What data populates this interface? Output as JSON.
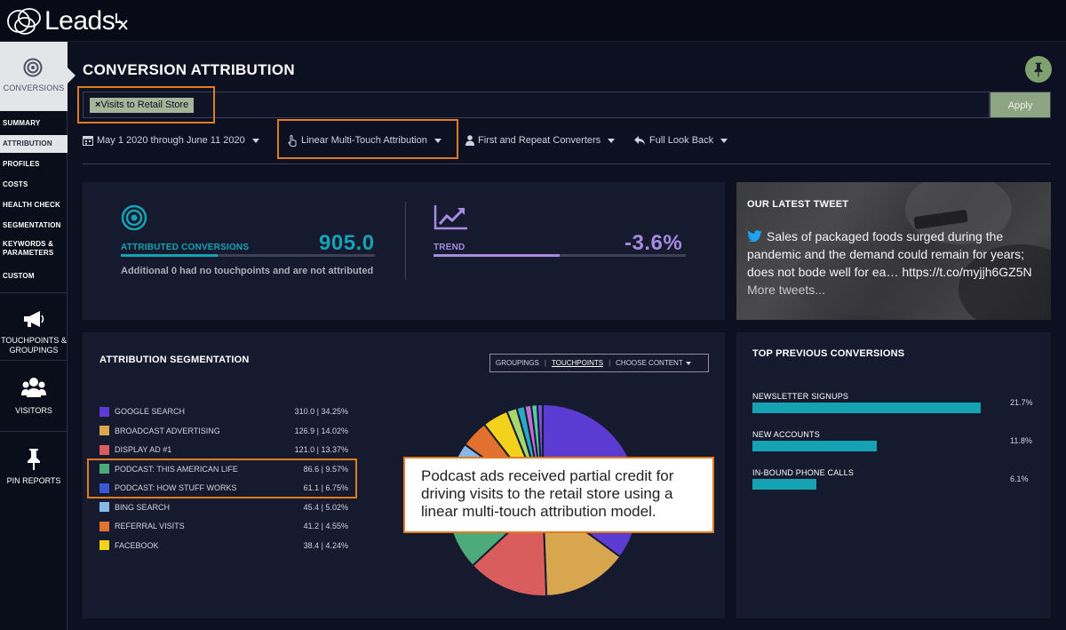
{
  "app": {
    "name": "Leads"
  },
  "sidebar": {
    "conversions_label": "CONVERSIONS",
    "subnav": [
      "SUMMARY",
      "ATTRIBUTION",
      "PROFILES",
      "COSTS",
      "HEALTH CHECK",
      "SEGMENTATION",
      "KEYWORDS & PARAMETERS",
      "CUSTOM"
    ],
    "active_index": 1,
    "touchpoints_label": "TOUCHPOINTS & GROUPINGS",
    "visitors_label": "VISITORS",
    "pin_reports_label": "PIN REPORTS"
  },
  "header": {
    "title": "CONVERSION ATTRIBUTION"
  },
  "filter": {
    "chip_text": "Visits to Retail Store",
    "apply_label": "Apply"
  },
  "controls": {
    "date_range": "May 1 2020 through June 11 2020",
    "model": "Linear Multi-Touch Attribution",
    "converters": "First and Repeat Converters",
    "lookback": "Full Look Back"
  },
  "kpis": {
    "attributed_label": "ATTRIBUTED CONVERSIONS",
    "attributed_value": "905.0",
    "attributed_note": "Additional 0 had no touchpoints and are not attributed",
    "trend_label": "TREND",
    "trend_value": "-3.6%"
  },
  "tweet": {
    "title": "OUR LATEST TWEET",
    "text": "Sales of packaged foods surged during the pandemic and the demand could remain for years; does not bode well for ea… https://t.co/myjjh6GZ5N",
    "more": "More tweets..."
  },
  "segmentation": {
    "title": "ATTRIBUTION SEGMENTATION",
    "toggle": [
      "GROUPINGS",
      "TOUCHPOINTS",
      "CHOOSE CONTENT"
    ]
  },
  "chart_data": {
    "type": "pie",
    "series": [
      {
        "label": "GOOGLE SEARCH",
        "value": 310.0,
        "percent": 34.25,
        "display": "310.0 | 34.25%",
        "color": "#5b3bd1"
      },
      {
        "label": "BROADCAST ADVERTISING",
        "value": 126.9,
        "percent": 14.02,
        "display": "126.9 | 14.02%",
        "color": "#d9a650"
      },
      {
        "label": "DISPLAY AD #1",
        "value": 121.0,
        "percent": 13.37,
        "display": "121.0 | 13.37%",
        "color": "#d95d5d"
      },
      {
        "label": "PODCAST: THIS AMERICAN LIFE",
        "value": 86.6,
        "percent": 9.57,
        "display": "86.6 | 9.57%",
        "color": "#4daa7a"
      },
      {
        "label": "PODCAST: HOW STUFF WORKS",
        "value": 61.1,
        "percent": 6.75,
        "display": "61.1 | 6.75%",
        "color": "#3a57d8"
      },
      {
        "label": "BING SEARCH",
        "value": 45.4,
        "percent": 5.02,
        "display": "45.4 | 5.02%",
        "color": "#86b8e8"
      },
      {
        "label": "REFERRAL VISITS",
        "value": 41.2,
        "percent": 4.55,
        "display": "41.2 | 4.55%",
        "color": "#e2702f"
      },
      {
        "label": "FACEBOOK",
        "value": 38.4,
        "percent": 4.24,
        "display": "38.4 | 4.24%",
        "color": "#f2d21b"
      },
      {
        "label": "",
        "value": 15,
        "color": "#a4d86e"
      },
      {
        "label": "",
        "value": 12,
        "color": "#2aa8c8"
      },
      {
        "label": "",
        "value": 10,
        "color": "#c06fd2"
      },
      {
        "label": "",
        "value": 9,
        "color": "#56c8a8"
      },
      {
        "label": "",
        "value": 8,
        "color": "#7a4fd8"
      }
    ]
  },
  "callout": {
    "text": "Podcast ads received partial credit for driving visits to the retail store using a linear multi-touch attribution model."
  },
  "top_previous": {
    "title": "TOP PREVIOUS CONVERSIONS",
    "items": [
      {
        "label": "NEWSLETTER SIGNUPS",
        "pct": "21.7%",
        "value": 21.7
      },
      {
        "label": "NEW ACCOUNTS",
        "pct": "11.8%",
        "value": 11.8
      },
      {
        "label": "IN-BOUND PHONE CALLS",
        "pct": "6.1%",
        "value": 6.1
      }
    ]
  },
  "colors": {
    "accent_teal": "#15a3b4",
    "accent_purple": "#a78be0",
    "highlight_orange": "#e07b22",
    "apply_green": "#8ea583"
  },
  "progress": {
    "attributed_fill": 0.38,
    "trend_fill": 0.5
  }
}
